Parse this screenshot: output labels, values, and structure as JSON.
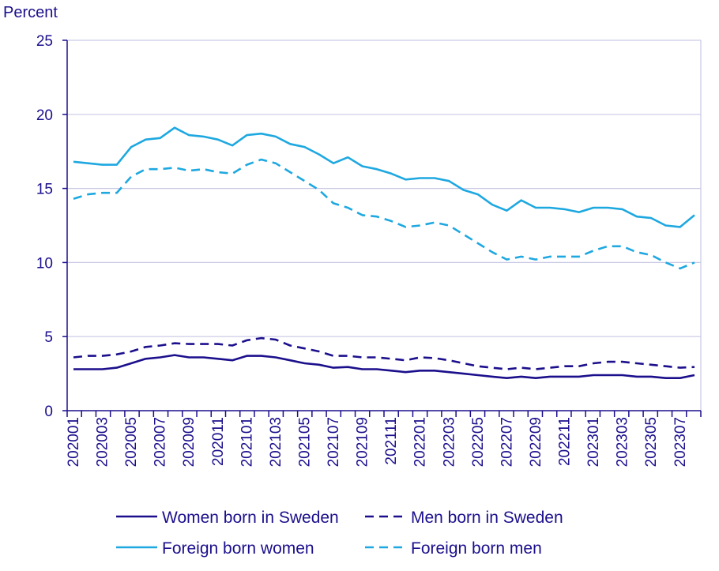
{
  "chart_data": {
    "type": "line",
    "title": "",
    "ylabel": "Percent",
    "xlabel": "",
    "ylim": [
      0,
      25
    ],
    "yticks": [
      0,
      5,
      10,
      15,
      20,
      25
    ],
    "grid": true,
    "legend_position": "bottom",
    "x": [
      "202001",
      "202002",
      "202003",
      "202004",
      "202005",
      "202006",
      "202007",
      "202008",
      "202009",
      "202010",
      "202011",
      "202012",
      "202101",
      "202102",
      "202103",
      "202104",
      "202105",
      "202106",
      "202107",
      "202108",
      "202109",
      "202110",
      "202111",
      "202112",
      "202201",
      "202202",
      "202203",
      "202204",
      "202205",
      "202206",
      "202207",
      "202208",
      "202209",
      "202210",
      "202211",
      "202212",
      "202301",
      "202302",
      "202303",
      "202304",
      "202305",
      "202306",
      "202307",
      "202308"
    ],
    "xtick_labels": [
      "202001",
      "202003",
      "202005",
      "202007",
      "202009",
      "202011",
      "202101",
      "202103",
      "202105",
      "202107",
      "202109",
      "202111",
      "202201",
      "202203",
      "202205",
      "202207",
      "202209",
      "202211",
      "202301",
      "202303",
      "202305",
      "202307"
    ],
    "series": [
      {
        "name": "Women born in Sweden",
        "color": "#1b0f8c",
        "dash": "solid",
        "values": [
          2.8,
          2.8,
          2.8,
          2.9,
          3.2,
          3.5,
          3.6,
          3.75,
          3.6,
          3.6,
          3.5,
          3.4,
          3.7,
          3.7,
          3.6,
          3.4,
          3.2,
          3.1,
          2.9,
          2.95,
          2.8,
          2.8,
          2.7,
          2.6,
          2.7,
          2.7,
          2.6,
          2.5,
          2.4,
          2.3,
          2.2,
          2.3,
          2.2,
          2.3,
          2.3,
          2.3,
          2.4,
          2.4,
          2.4,
          2.3,
          2.3,
          2.2,
          2.2,
          2.4
        ]
      },
      {
        "name": "Men born in Sweden",
        "color": "#1b0f8c",
        "dash": "dashed",
        "values": [
          3.6,
          3.7,
          3.7,
          3.8,
          4.0,
          4.3,
          4.4,
          4.55,
          4.5,
          4.5,
          4.5,
          4.4,
          4.75,
          4.9,
          4.8,
          4.4,
          4.2,
          4.0,
          3.7,
          3.7,
          3.6,
          3.6,
          3.5,
          3.4,
          3.6,
          3.55,
          3.4,
          3.2,
          3.0,
          2.9,
          2.8,
          2.9,
          2.8,
          2.9,
          3.0,
          3.0,
          3.2,
          3.3,
          3.3,
          3.2,
          3.1,
          3.0,
          2.9,
          2.95
        ]
      },
      {
        "name": "Foreign born women",
        "color": "#1ea8e0",
        "dash": "solid",
        "values": [
          16.8,
          16.7,
          16.6,
          16.6,
          17.8,
          18.3,
          18.4,
          19.1,
          18.6,
          18.5,
          18.3,
          17.9,
          18.6,
          18.7,
          18.5,
          18.0,
          17.8,
          17.3,
          16.7,
          17.1,
          16.5,
          16.3,
          16.0,
          15.6,
          15.7,
          15.7,
          15.5,
          14.9,
          14.6,
          13.9,
          13.5,
          14.2,
          13.7,
          13.7,
          13.6,
          13.4,
          13.7,
          13.7,
          13.6,
          13.1,
          13.0,
          12.5,
          12.4,
          13.2
        ]
      },
      {
        "name": "Foreign born men",
        "color": "#1ea8e0",
        "dash": "dashed",
        "values": [
          14.3,
          14.6,
          14.7,
          14.7,
          15.8,
          16.3,
          16.3,
          16.4,
          16.2,
          16.3,
          16.1,
          16.0,
          16.6,
          16.95,
          16.7,
          16.1,
          15.5,
          14.9,
          14.0,
          13.7,
          13.2,
          13.1,
          12.8,
          12.4,
          12.5,
          12.7,
          12.5,
          11.9,
          11.3,
          10.7,
          10.2,
          10.4,
          10.2,
          10.4,
          10.4,
          10.4,
          10.8,
          11.1,
          11.1,
          10.7,
          10.5,
          10.0,
          9.6,
          10.0
        ]
      }
    ],
    "legend": [
      "Women born in Sweden",
      "Men born in Sweden",
      "Foreign born women",
      "Foreign born men"
    ]
  }
}
